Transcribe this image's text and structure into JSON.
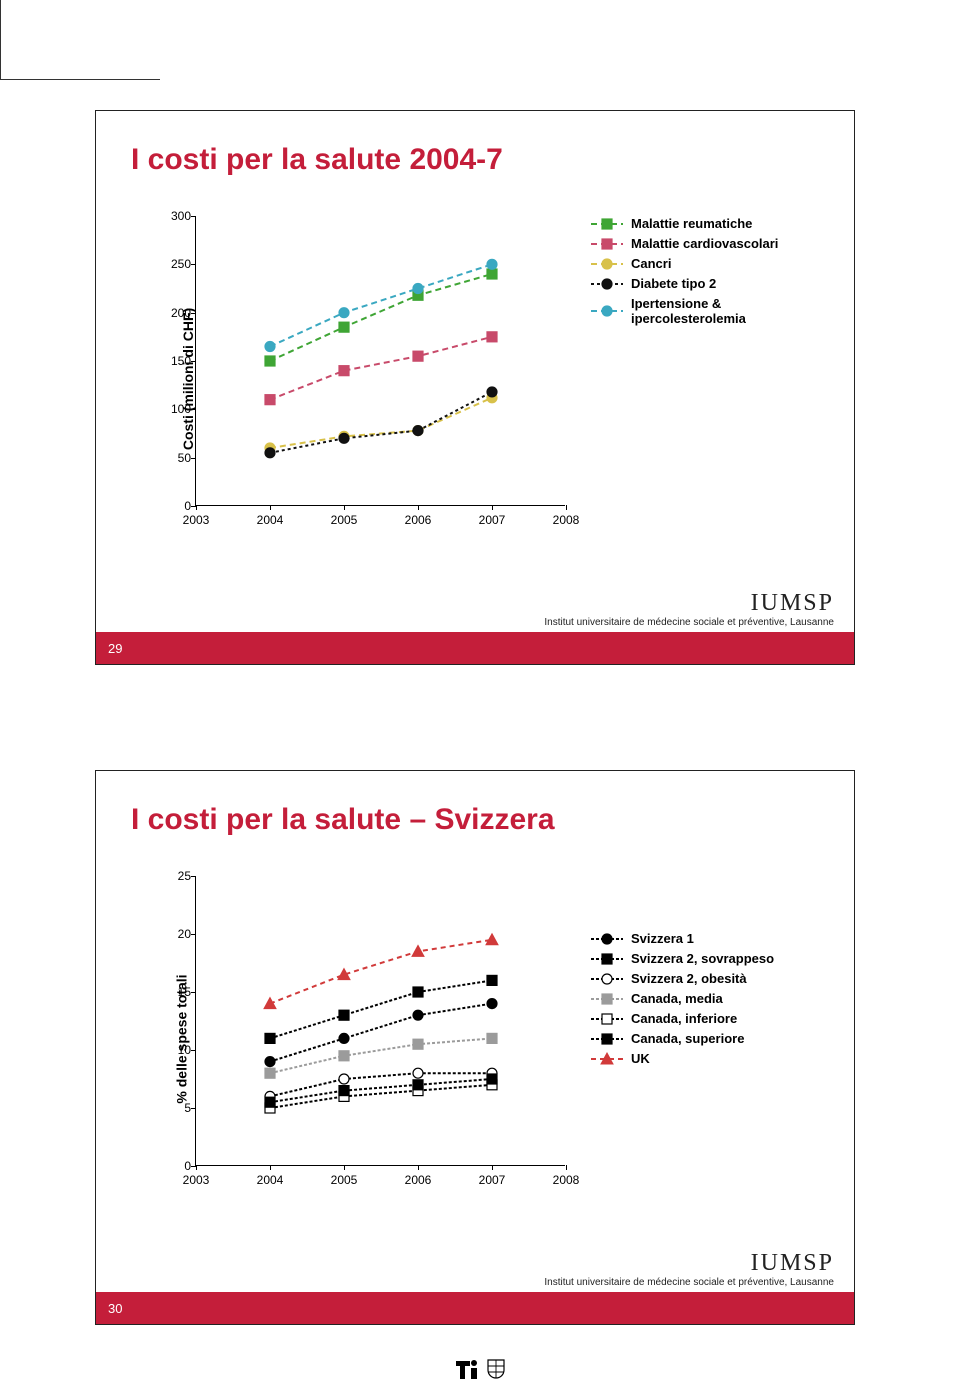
{
  "slide1": {
    "number": "29",
    "title": "I costi per la salute 2004-7",
    "title_color": "#c41e3a",
    "ylabel": "Costi (milioni di CHF)",
    "xticks": [
      "2003",
      "2004",
      "2005",
      "2006",
      "2007",
      "2008"
    ],
    "chart": {
      "type": "line",
      "xlim": [
        2003,
        2008
      ],
      "ylim": [
        0,
        300
      ],
      "yticks": [
        0,
        50,
        100,
        150,
        200,
        250,
        300
      ],
      "background_color": "#ffffff",
      "series": [
        {
          "name": "Malattie reumatiche",
          "color": "#3fa535",
          "dash": "6,4",
          "shape": "square",
          "x": [
            2004,
            2005,
            2006,
            2007
          ],
          "y": [
            150,
            185,
            218,
            240
          ]
        },
        {
          "name": "Malattie cardiovascolari",
          "color": "#c84a6a",
          "dash": "6,4",
          "shape": "square",
          "x": [
            2004,
            2005,
            2006,
            2007
          ],
          "y": [
            110,
            140,
            155,
            175
          ]
        },
        {
          "name": "Cancri",
          "color": "#d8c14a",
          "dash": "6,4",
          "shape": "circle",
          "x": [
            2004,
            2005,
            2006,
            2007
          ],
          "y": [
            60,
            72,
            78,
            112
          ]
        },
        {
          "name": "Diabete tipo 2",
          "color": "#111111",
          "dash": "3,3",
          "shape": "circle",
          "x": [
            2004,
            2005,
            2006,
            2007
          ],
          "y": [
            55,
            70,
            78,
            118
          ]
        },
        {
          "name": "Ipertensione & ipercolesterolemia",
          "color": "#3aa8c1",
          "dash": "6,4",
          "shape": "circle",
          "x": [
            2004,
            2005,
            2006,
            2007
          ],
          "y": [
            165,
            200,
            225,
            250
          ]
        }
      ]
    },
    "iumsp_logo": "IUMSP",
    "iumsp_sub": "Institut universitaire de médecine sociale et préventive, Lausanne"
  },
  "slide2": {
    "number": "30",
    "title": "I costi per la salute – Svizzera",
    "title_color": "#c41e3a",
    "ylabel": "% delle spese totali",
    "xticks": [
      "2003",
      "2004",
      "2005",
      "2006",
      "2007",
      "2008"
    ],
    "chart": {
      "type": "line",
      "xlim": [
        2003,
        2008
      ],
      "ylim": [
        0,
        25
      ],
      "yticks": [
        0,
        5,
        10,
        15,
        20,
        25
      ],
      "background_color": "#ffffff",
      "series": [
        {
          "name": "Svizzera 1",
          "color": "#000000",
          "dash": "3,2",
          "shape": "circle",
          "fill": "#000",
          "x": [
            2004,
            2005,
            2006,
            2007
          ],
          "y": [
            9,
            11,
            13,
            14
          ]
        },
        {
          "name": "Svizzera 2, sovrappeso",
          "color": "#000000",
          "dash": "3,2",
          "shape": "square",
          "fill": "#000",
          "x": [
            2004,
            2005,
            2006,
            2007
          ],
          "y": [
            11,
            13,
            15,
            16
          ]
        },
        {
          "name": "Svizzera 2, obesità",
          "color": "#000000",
          "dash": "3,2",
          "shape": "circle",
          "fill": "#fff",
          "x": [
            2004,
            2005,
            2006,
            2007
          ],
          "y": [
            6,
            7.5,
            8,
            8
          ]
        },
        {
          "name": "Canada, media",
          "color": "#9b9b9b",
          "dash": "3,2",
          "shape": "square",
          "fill": "#9b9b9b",
          "x": [
            2004,
            2005,
            2006,
            2007
          ],
          "y": [
            8,
            9.5,
            10.5,
            11
          ]
        },
        {
          "name": "Canada, inferiore",
          "color": "#000000",
          "dash": "3,2",
          "shape": "square",
          "fill": "#fff",
          "x": [
            2004,
            2005,
            2006,
            2007
          ],
          "y": [
            5,
            6,
            6.5,
            7
          ]
        },
        {
          "name": "Canada, superiore",
          "color": "#000000",
          "dash": "3,2",
          "shape": "square",
          "fill": "#000",
          "x": [
            2004,
            2005,
            2006,
            2007
          ],
          "y": [
            5.5,
            6.5,
            7,
            7.5
          ]
        },
        {
          "name": "UK",
          "color": "#d13a3a",
          "dash": "5,4",
          "shape": "triangle",
          "fill": "#d13a3a",
          "x": [
            2004,
            2005,
            2006,
            2007
          ],
          "y": [
            14,
            16.5,
            18.5,
            19.5
          ]
        }
      ]
    },
    "iumsp_logo": "IUMSP",
    "iumsp_sub": "Institut universitaire de médecine sociale et préventive, Lausanne"
  }
}
